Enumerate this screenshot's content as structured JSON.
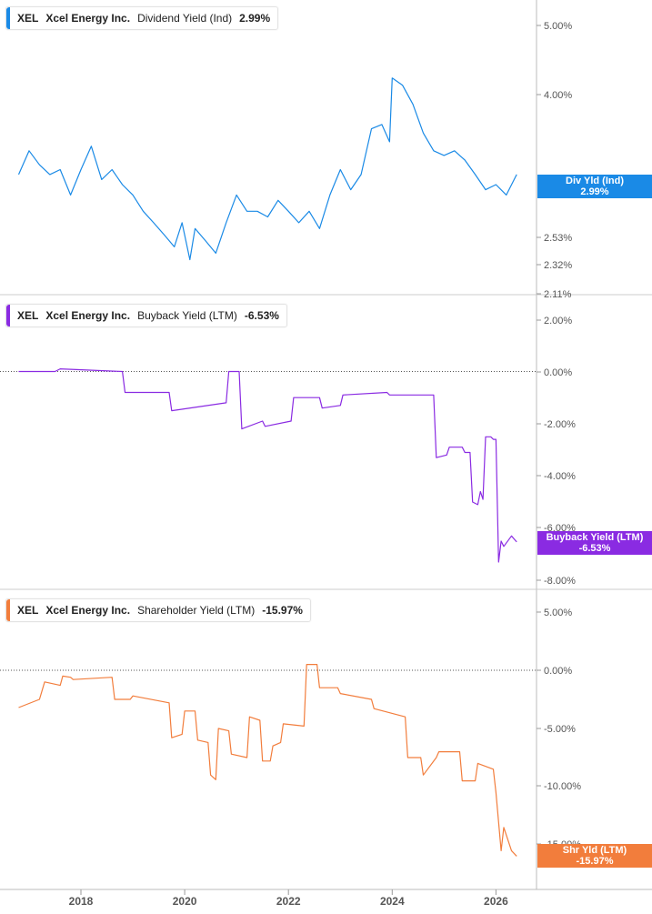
{
  "colors": {
    "div": "#1a8ae6",
    "buy": "#8a2be2",
    "shr": "#f27d3c",
    "axis_text": "#555555",
    "grid": "#cccccc"
  },
  "xaxis": {
    "ticks": [
      2018,
      2020,
      2022,
      2024,
      2026
    ]
  },
  "chart_data": [
    {
      "type": "line",
      "ticker": "XEL",
      "company": "Xcel Energy Inc.",
      "metric": "Dividend Yield (Ind)",
      "last_value_label": "2.99%",
      "tag_label": "Div Yld (Ind)",
      "tag_value": "2.99%",
      "y_scale": "log",
      "y_ticks": [
        "5.00%",
        "4.00%",
        "2.53%",
        "2.32%",
        "2.11%"
      ],
      "x": [
        2016.8,
        2017.0,
        2017.2,
        2017.4,
        2017.6,
        2017.8,
        2018.0,
        2018.2,
        2018.4,
        2018.6,
        2018.8,
        2019.0,
        2019.2,
        2019.4,
        2019.6,
        2019.8,
        2019.95,
        2020.1,
        2020.2,
        2020.4,
        2020.6,
        2020.8,
        2021.0,
        2021.2,
        2021.4,
        2021.6,
        2021.8,
        2022.0,
        2022.2,
        2022.4,
        2022.6,
        2022.8,
        2023.0,
        2023.2,
        2023.4,
        2023.6,
        2023.8,
        2023.95,
        2024.0,
        2024.2,
        2024.4,
        2024.6,
        2024.8,
        2025.0,
        2025.2,
        2025.4,
        2025.6,
        2025.8,
        2026.0,
        2026.2,
        2026.4
      ],
      "y": [
        3.05,
        3.3,
        3.15,
        3.05,
        3.1,
        2.85,
        3.1,
        3.35,
        3.0,
        3.1,
        2.95,
        2.85,
        2.7,
        2.6,
        2.5,
        2.4,
        2.6,
        2.3,
        2.55,
        2.45,
        2.35,
        2.6,
        2.85,
        2.7,
        2.7,
        2.65,
        2.8,
        2.7,
        2.6,
        2.7,
        2.55,
        2.85,
        3.1,
        2.9,
        3.05,
        3.55,
        3.6,
        3.4,
        4.2,
        4.1,
        3.85,
        3.5,
        3.3,
        3.25,
        3.3,
        3.2,
        3.05,
        2.9,
        2.95,
        2.85,
        3.05
      ]
    },
    {
      "type": "line",
      "ticker": "XEL",
      "company": "Xcel Energy Inc.",
      "metric": "Buyback Yield (LTM)",
      "last_value_label": "-6.53%",
      "tag_label": "Buyback Yield (LTM)",
      "tag_value": "-6.53%",
      "y_ticks": [
        "2.00%",
        "0.00%",
        "-2.00%",
        "-4.00%",
        "-6.00%",
        "-8.00%"
      ],
      "x": [
        2016.8,
        2017.5,
        2017.6,
        2018.8,
        2018.85,
        2019.7,
        2019.75,
        2020.8,
        2020.85,
        2021.05,
        2021.1,
        2021.5,
        2021.55,
        2022.05,
        2022.1,
        2022.6,
        2022.65,
        2023.0,
        2023.05,
        2023.9,
        2023.95,
        2024.8,
        2024.85,
        2025.05,
        2025.1,
        2025.35,
        2025.4,
        2025.5,
        2025.55,
        2025.65,
        2025.7,
        2025.75,
        2025.8,
        2025.9,
        2025.95,
        2026.0,
        2026.05,
        2026.1,
        2026.15,
        2026.3,
        2026.4
      ],
      "y": [
        0.0,
        0.0,
        0.1,
        0.0,
        -0.8,
        -0.8,
        -1.5,
        -1.2,
        0.0,
        0.0,
        -2.2,
        -1.9,
        -2.1,
        -1.9,
        -1.0,
        -1.0,
        -1.4,
        -1.3,
        -0.9,
        -0.8,
        -0.9,
        -0.9,
        -3.3,
        -3.2,
        -2.9,
        -2.9,
        -3.1,
        -3.1,
        -5.0,
        -5.1,
        -4.6,
        -4.9,
        -2.5,
        -2.5,
        -2.6,
        -2.6,
        -7.3,
        -6.5,
        -6.7,
        -6.3,
        -6.53
      ]
    },
    {
      "type": "line",
      "ticker": "XEL",
      "company": "Xcel Energy Inc.",
      "metric": "Shareholder Yield (LTM)",
      "last_value_label": "-15.97%",
      "tag_label": "Shr Yld (LTM)",
      "tag_value": "-15.97%",
      "y_ticks": [
        "5.00%",
        "0.00%",
        "-5.00%",
        "-10.00%",
        "-15.00%"
      ],
      "x": [
        2016.8,
        2017.2,
        2017.3,
        2017.6,
        2017.65,
        2017.8,
        2017.85,
        2018.6,
        2018.65,
        2018.95,
        2019.0,
        2019.7,
        2019.75,
        2019.95,
        2020.0,
        2020.2,
        2020.25,
        2020.45,
        2020.5,
        2020.6,
        2020.65,
        2020.85,
        2020.9,
        2021.2,
        2021.25,
        2021.45,
        2021.5,
        2021.65,
        2021.7,
        2021.85,
        2021.9,
        2022.3,
        2022.35,
        2022.55,
        2022.6,
        2022.95,
        2023.0,
        2023.6,
        2023.65,
        2024.25,
        2024.3,
        2024.55,
        2024.6,
        2024.85,
        2024.9,
        2025.3,
        2025.35,
        2025.6,
        2025.65,
        2025.95,
        2026.0,
        2026.1,
        2026.15,
        2026.3,
        2026.4
      ],
      "y": [
        -3.2,
        -2.5,
        -1.0,
        -1.3,
        -0.5,
        -0.6,
        -0.8,
        -0.6,
        -2.5,
        -2.5,
        -2.2,
        -2.8,
        -5.8,
        -5.5,
        -3.5,
        -3.5,
        -6.0,
        -6.2,
        -9.0,
        -9.4,
        -5.0,
        -5.2,
        -7.2,
        -7.5,
        -4.0,
        -4.3,
        -7.8,
        -7.8,
        -6.5,
        -6.2,
        -4.6,
        -4.8,
        0.5,
        0.5,
        -1.5,
        -1.5,
        -2.0,
        -2.5,
        -3.3,
        -4.0,
        -7.5,
        -7.5,
        -9.0,
        -7.5,
        -7.0,
        -7.0,
        -9.5,
        -9.5,
        -8.0,
        -8.5,
        -10.5,
        -15.5,
        -13.5,
        -15.5,
        -15.97
      ]
    }
  ]
}
